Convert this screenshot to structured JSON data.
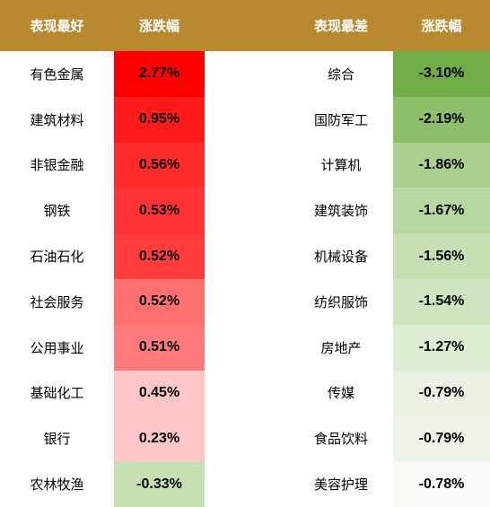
{
  "table": {
    "header": [
      "表现最好",
      "涨跌幅",
      "表现最差",
      "涨跌幅"
    ],
    "rows": [
      [
        "有色金属",
        "2.77%",
        "综合",
        "-3.10%"
      ],
      [
        "建筑材料",
        "0.95%",
        "国防军工",
        "-2.19%"
      ],
      [
        "非银金融",
        "0.56%",
        "计算机",
        "-1.86%"
      ],
      [
        "钢铁",
        "0.53%",
        "建筑装饰",
        "-1.67%"
      ],
      [
        "石油石化",
        "0.52%",
        "机械设备",
        "-1.56%"
      ],
      [
        "社会服务",
        "0.52%",
        "纺织服饰",
        "-1.54%"
      ],
      [
        "公用事业",
        "0.51%",
        "房地产",
        "-1.27%"
      ],
      [
        "基础化工",
        "0.45%",
        "传媒",
        "-0.79%"
      ],
      [
        "银行",
        "0.23%",
        "食品饮料",
        "-0.79%"
      ],
      [
        "农林牧渔",
        "-0.33%",
        "美容护理",
        "-0.78%"
      ]
    ]
  }
}
